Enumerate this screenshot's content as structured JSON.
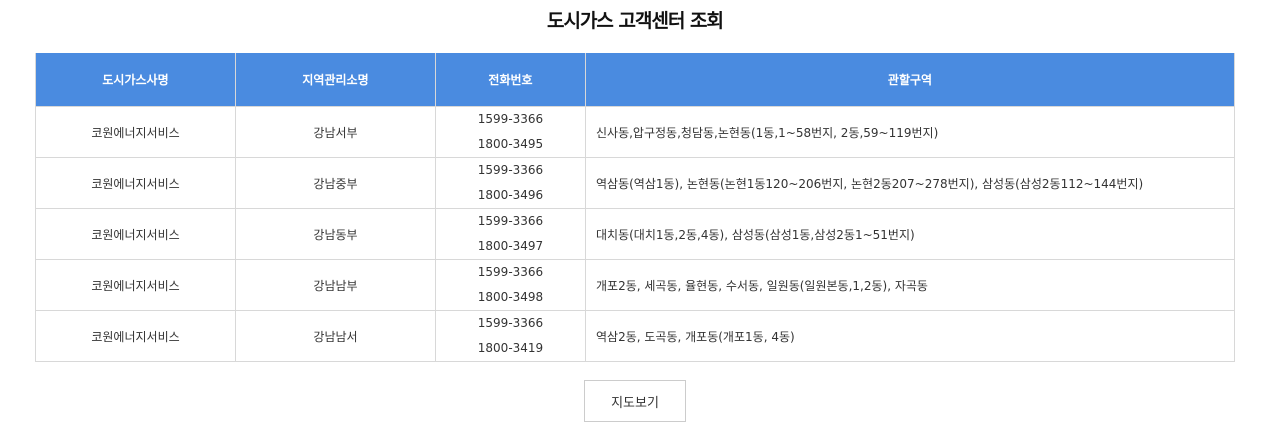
{
  "title": "도시가스 고객센터 조회",
  "headers": [
    "도시가스사명",
    "지역관리소명",
    "전화번호",
    "관할구역"
  ],
  "rows": [
    {
      "company": "코원에너지서비스",
      "office": "강남서부",
      "phones": [
        "1599-3366",
        "1800-3495"
      ],
      "area": "신사동,압구정동,청담동,논현동(1동,1~58번지, 2동,59~119번지)"
    },
    {
      "company": "코원에너지서비스",
      "office": "강남중부",
      "phones": [
        "1599-3366",
        "1800-3496"
      ],
      "area": "역삼동(역삼1동), 논현동(논현1동120~206번지, 논현2동207~278번지), 삼성동(삼성2동112~144번지)"
    },
    {
      "company": "코원에너지서비스",
      "office": "강남동부",
      "phones": [
        "1599-3366",
        "1800-3497"
      ],
      "area": "대치동(대치1동,2동,4동), 삼성동(삼성1동,삼성2동1~51번지)"
    },
    {
      "company": "코원에너지서비스",
      "office": "강남남부",
      "phones": [
        "1599-3366",
        "1800-3498"
      ],
      "area": "개포2동, 세곡동, 율현동, 수서동, 일원동(일원본동,1,2동), 자곡동"
    },
    {
      "company": "코원에너지서비스",
      "office": "강남남서",
      "phones": [
        "1599-3366",
        "1800-3419"
      ],
      "area": "역삼2동, 도곡동, 개포동(개포1동, 4동)"
    }
  ],
  "map_button": "지도보기",
  "colors": {
    "header_bg": "#4a8be0"
  }
}
